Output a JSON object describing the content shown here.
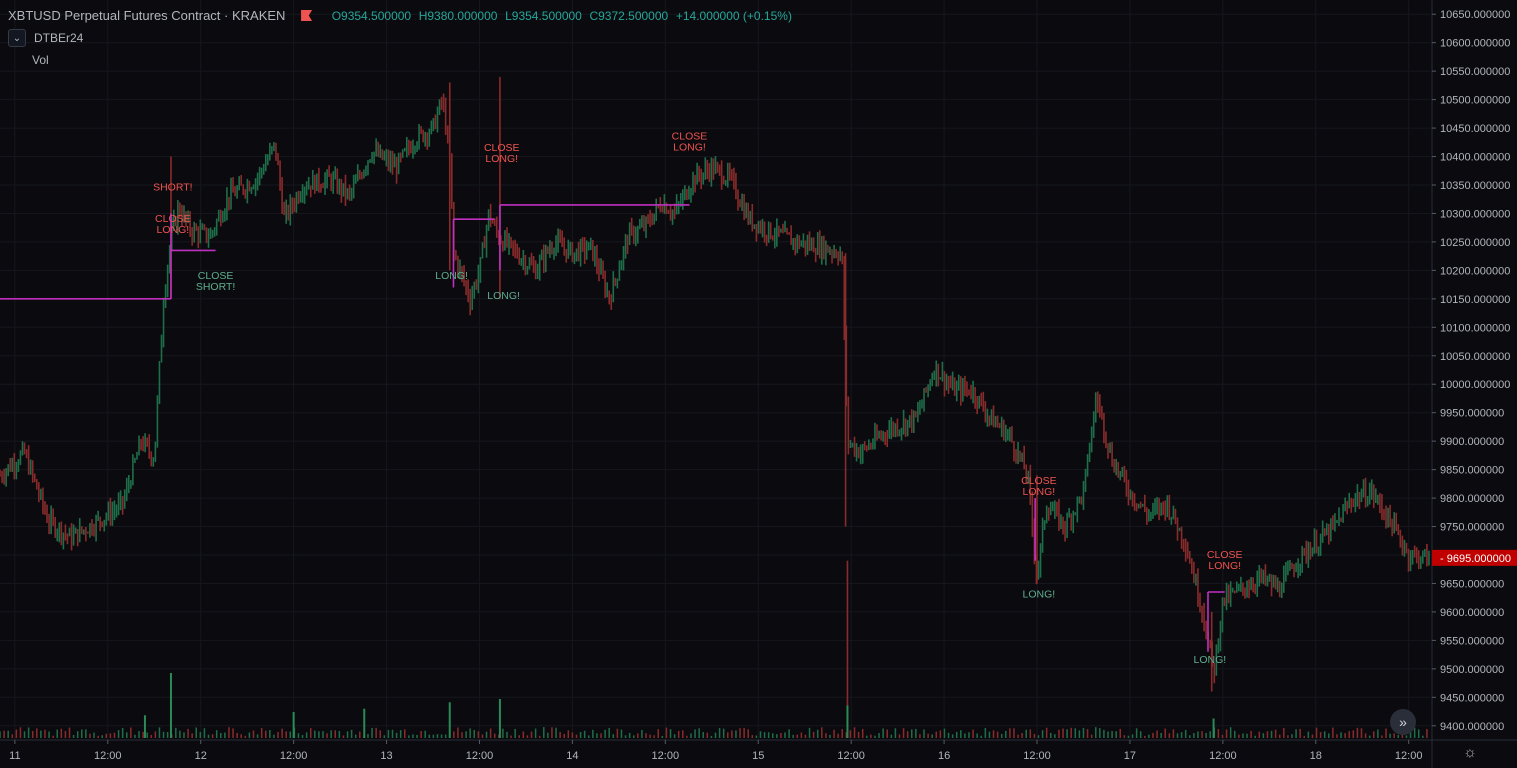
{
  "header": {
    "symbol": "XBTUSD Perpetual Futures Contract · KRAKEN",
    "open": "O9354.500000",
    "high": "H9380.000000",
    "low": "L9354.500000",
    "close": "C9372.500000",
    "change": "+14.000000 (+0.15%)"
  },
  "indicator": {
    "name": "DTBEr24",
    "collapse_icon": "chevron-down-icon"
  },
  "volume_label": "Vol",
  "colors": {
    "background": "#0b0b0f",
    "up": "#26a69a",
    "down": "#ef5350",
    "position_line": "#c030c0",
    "price_tag": "#c00000"
  },
  "chart_data": {
    "type": "candlestick",
    "y_ticks": [
      "10650.000000",
      "10600.000000",
      "10550.000000",
      "10500.000000",
      "10450.000000",
      "10400.000000",
      "10350.000000",
      "10300.000000",
      "10250.000000",
      "10200.000000",
      "10150.000000",
      "10100.000000",
      "10050.000000",
      "10000.000000",
      "9950.000000",
      "9900.000000",
      "9850.000000",
      "9800.000000",
      "9750.000000",
      "9700.000000",
      "9650.000000",
      "9600.000000",
      "9550.000000",
      "9500.000000",
      "9450.000000",
      "9400.000000"
    ],
    "ylim": [
      9375,
      10675
    ],
    "x_ticks": [
      "11",
      "12:00",
      "12",
      "12:00",
      "13",
      "12:00",
      "14",
      "12:00",
      "15",
      "12:00",
      "16",
      "12:00",
      "17",
      "12:00",
      "18",
      "12:00"
    ],
    "x_range_days": [
      10.92,
      18.62
    ],
    "last_price": "9695.000000",
    "price_path": [
      {
        "t": 10.92,
        "p": 9840
      },
      {
        "t": 11.05,
        "p": 9880
      },
      {
        "t": 11.18,
        "p": 9760
      },
      {
        "t": 11.3,
        "p": 9730
      },
      {
        "t": 11.45,
        "p": 9760
      },
      {
        "t": 11.58,
        "p": 9790
      },
      {
        "t": 11.68,
        "p": 9900
      },
      {
        "t": 11.75,
        "p": 9870
      },
      {
        "t": 11.8,
        "p": 10150
      },
      {
        "t": 11.84,
        "p": 10260
      },
      {
        "t": 11.88,
        "p": 10310
      },
      {
        "t": 11.95,
        "p": 10270
      },
      {
        "t": 12.05,
        "p": 10260
      },
      {
        "t": 12.15,
        "p": 10330
      },
      {
        "t": 12.3,
        "p": 10360
      },
      {
        "t": 12.4,
        "p": 10420
      },
      {
        "t": 12.45,
        "p": 10290
      },
      {
        "t": 12.55,
        "p": 10350
      },
      {
        "t": 12.7,
        "p": 10360
      },
      {
        "t": 12.8,
        "p": 10330
      },
      {
        "t": 12.92,
        "p": 10410
      },
      {
        "t": 13.05,
        "p": 10380
      },
      {
        "t": 13.15,
        "p": 10430
      },
      {
        "t": 13.25,
        "p": 10450
      },
      {
        "t": 13.3,
        "p": 10500
      },
      {
        "t": 13.34,
        "p": 10400
      },
      {
        "t": 13.36,
        "p": 10230
      },
      {
        "t": 13.45,
        "p": 10150
      },
      {
        "t": 13.5,
        "p": 10200
      },
      {
        "t": 13.55,
        "p": 10300
      },
      {
        "t": 13.6,
        "p": 10260
      },
      {
        "t": 13.7,
        "p": 10230
      },
      {
        "t": 13.8,
        "p": 10200
      },
      {
        "t": 13.9,
        "p": 10250
      },
      {
        "t": 14.0,
        "p": 10230
      },
      {
        "t": 14.1,
        "p": 10240
      },
      {
        "t": 14.2,
        "p": 10150
      },
      {
        "t": 14.3,
        "p": 10260
      },
      {
        "t": 14.4,
        "p": 10280
      },
      {
        "t": 14.48,
        "p": 10320
      },
      {
        "t": 14.55,
        "p": 10300
      },
      {
        "t": 14.65,
        "p": 10360
      },
      {
        "t": 14.75,
        "p": 10380
      },
      {
        "t": 14.85,
        "p": 10360
      },
      {
        "t": 14.95,
        "p": 10290
      },
      {
        "t": 15.05,
        "p": 10270
      },
      {
        "t": 15.2,
        "p": 10250
      },
      {
        "t": 15.35,
        "p": 10240
      },
      {
        "t": 15.45,
        "p": 10230
      },
      {
        "t": 15.48,
        "p": 9900
      },
      {
        "t": 15.55,
        "p": 9880
      },
      {
        "t": 15.7,
        "p": 9920
      },
      {
        "t": 15.85,
        "p": 9940
      },
      {
        "t": 15.95,
        "p": 10030
      },
      {
        "t": 16.05,
        "p": 9990
      },
      {
        "t": 16.15,
        "p": 9990
      },
      {
        "t": 16.25,
        "p": 9940
      },
      {
        "t": 16.35,
        "p": 9910
      },
      {
        "t": 16.45,
        "p": 9840
      },
      {
        "t": 16.5,
        "p": 9660
      },
      {
        "t": 16.55,
        "p": 9790
      },
      {
        "t": 16.65,
        "p": 9750
      },
      {
        "t": 16.75,
        "p": 9810
      },
      {
        "t": 16.82,
        "p": 9980
      },
      {
        "t": 16.9,
        "p": 9870
      },
      {
        "t": 17.0,
        "p": 9810
      },
      {
        "t": 17.1,
        "p": 9770
      },
      {
        "t": 17.2,
        "p": 9790
      },
      {
        "t": 17.3,
        "p": 9720
      },
      {
        "t": 17.4,
        "p": 9590
      },
      {
        "t": 17.45,
        "p": 9490
      },
      {
        "t": 17.5,
        "p": 9620
      },
      {
        "t": 17.6,
        "p": 9640
      },
      {
        "t": 17.7,
        "p": 9660
      },
      {
        "t": 17.8,
        "p": 9640
      },
      {
        "t": 17.9,
        "p": 9690
      },
      {
        "t": 18.0,
        "p": 9720
      },
      {
        "t": 18.1,
        "p": 9750
      },
      {
        "t": 18.2,
        "p": 9800
      },
      {
        "t": 18.3,
        "p": 9810
      },
      {
        "t": 18.4,
        "p": 9760
      },
      {
        "t": 18.5,
        "p": 9700
      },
      {
        "t": 18.6,
        "p": 9695
      }
    ],
    "spikes": [
      {
        "t": 11.84,
        "hi": 10400,
        "lo": 10150
      },
      {
        "t": 13.34,
        "hi": 10530,
        "lo": 10200
      },
      {
        "t": 13.61,
        "hi": 10540,
        "lo": 10150
      },
      {
        "t": 15.47,
        "hi": 10230,
        "lo": 9750
      },
      {
        "t": 15.48,
        "hi": 9690,
        "lo": 9380
      },
      {
        "t": 16.5,
        "hi": 9840,
        "lo": 9650
      },
      {
        "t": 17.44,
        "hi": 9600,
        "lo": 9460
      }
    ],
    "volume_spikes": [
      {
        "t": 11.84,
        "v": 1.0
      },
      {
        "t": 13.34,
        "v": 0.55
      },
      {
        "t": 13.61,
        "v": 0.6
      },
      {
        "t": 15.48,
        "v": 0.5
      },
      {
        "t": 12.5,
        "v": 0.4
      },
      {
        "t": 12.88,
        "v": 0.45
      },
      {
        "t": 11.7,
        "v": 0.35
      },
      {
        "t": 17.45,
        "v": 0.3
      }
    ],
    "position_lines": [
      {
        "t0": 10.92,
        "t1": 11.84,
        "price": 10150
      },
      {
        "t0": 11.84,
        "t1": 12.08,
        "price": 10235
      },
      {
        "t0": 13.36,
        "t1": 13.58,
        "price": 10290
      },
      {
        "t0": 13.61,
        "t1": 14.63,
        "price": 10315
      },
      {
        "t0": 17.42,
        "t1": 17.51,
        "price": 9635
      }
    ],
    "position_verticals": [
      {
        "t": 11.84,
        "p0": 10150,
        "p1": 10300
      },
      {
        "t": 13.36,
        "p0": 10290,
        "p1": 10170
      },
      {
        "t": 13.61,
        "p0": 10315,
        "p1": 10200
      },
      {
        "t": 16.49,
        "p0": 9800,
        "p1": 9690
      },
      {
        "t": 17.42,
        "p0": 9635,
        "p1": 9530
      }
    ],
    "signals": [
      {
        "lines": [
          "SHORT!"
        ],
        "t": 11.85,
        "p": 10340,
        "kind": "sell"
      },
      {
        "lines": [
          "CLOSE",
          "LONG!"
        ],
        "t": 11.85,
        "p": 10285,
        "kind": "sell"
      },
      {
        "lines": [
          "CLOSE",
          "SHORT!"
        ],
        "t": 12.08,
        "p": 10185,
        "kind": "buy"
      },
      {
        "lines": [
          "LONG!"
        ],
        "t": 13.35,
        "p": 10185,
        "kind": "buy"
      },
      {
        "lines": [
          "CLOSE",
          "LONG!"
        ],
        "t": 13.62,
        "p": 10410,
        "kind": "sell"
      },
      {
        "lines": [
          "LONG!"
        ],
        "t": 13.63,
        "p": 10150,
        "kind": "buy"
      },
      {
        "lines": [
          "CLOSE",
          "LONG!"
        ],
        "t": 14.63,
        "p": 10430,
        "kind": "sell"
      },
      {
        "lines": [
          "CLOSE",
          "LONG!"
        ],
        "t": 16.51,
        "p": 9825,
        "kind": "sell"
      },
      {
        "lines": [
          "LONG!"
        ],
        "t": 16.51,
        "p": 9625,
        "kind": "buy"
      },
      {
        "lines": [
          "CLOSE",
          "LONG!"
        ],
        "t": 17.51,
        "p": 9695,
        "kind": "sell"
      },
      {
        "lines": [
          "LONG!"
        ],
        "t": 17.43,
        "p": 9510,
        "kind": "buy"
      }
    ]
  }
}
